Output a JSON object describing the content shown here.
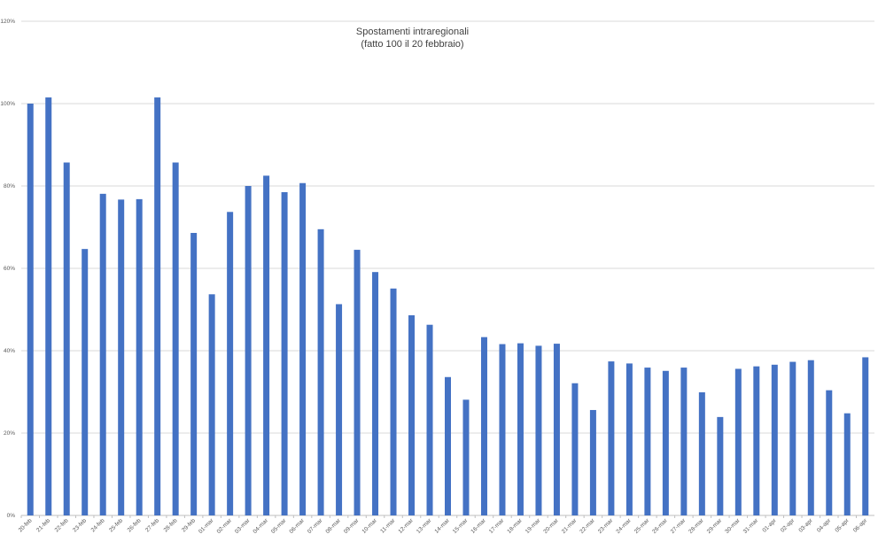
{
  "chart_data": {
    "type": "bar",
    "title": "Spostamenti intraregionali",
    "subtitle": "(fatto 100 il 20 febbraio)",
    "xlabel": "",
    "ylabel": "",
    "ylim": [
      0,
      1.2
    ],
    "y_ticks": [
      {
        "value": 0,
        "label": "0%"
      },
      {
        "value": 0.2,
        "label": "20%"
      },
      {
        "value": 0.4,
        "label": "40%"
      },
      {
        "value": 0.6,
        "label": "60%"
      },
      {
        "value": 0.8,
        "label": "80%"
      },
      {
        "value": 1.0,
        "label": "100%"
      },
      {
        "value": 1.2,
        "label": "120%"
      }
    ],
    "grid": true,
    "bar_color": "#4472C4",
    "categories": [
      "20-feb",
      "21-feb",
      "22-feb",
      "23-feb",
      "24-feb",
      "25-feb",
      "26-feb",
      "27-feb",
      "28-feb",
      "29-feb",
      "01-mar",
      "02-mar",
      "03-mar",
      "04-mar",
      "05-mar",
      "06-mar",
      "07-mar",
      "08-mar",
      "09-mar",
      "10-mar",
      "11-mar",
      "12-mar",
      "13-mar",
      "14-mar",
      "15-mar",
      "16-mar",
      "17-mar",
      "18-mar",
      "19-mar",
      "20-mar",
      "21-mar",
      "22-mar",
      "23-mar",
      "24-mar",
      "25-mar",
      "26-mar",
      "27-mar",
      "28-mar",
      "29-mar",
      "30-mar",
      "31-mar",
      "01-apr",
      "02-apr",
      "03-apr",
      "04-apr",
      "05-apr",
      "06-apr"
    ],
    "values": [
      1.0,
      1.015,
      0.857,
      0.647,
      0.781,
      0.767,
      0.768,
      1.015,
      0.857,
      0.686,
      0.537,
      0.737,
      0.8,
      0.825,
      0.785,
      0.807,
      0.695,
      0.513,
      0.645,
      0.591,
      0.551,
      0.486,
      0.463,
      0.336,
      0.281,
      0.433,
      0.416,
      0.418,
      0.412,
      0.417,
      0.321,
      0.256,
      0.374,
      0.369,
      0.359,
      0.351,
      0.359,
      0.299,
      0.239,
      0.356,
      0.362,
      0.366,
      0.373,
      0.377,
      0.304,
      0.248,
      0.384
    ]
  }
}
